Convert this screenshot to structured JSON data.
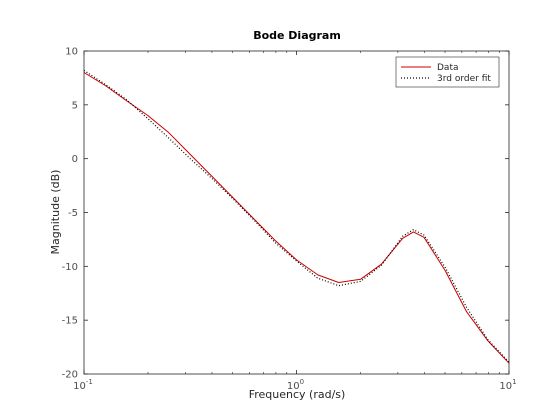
{
  "chart_data": {
    "type": "line",
    "title": "Bode Diagram",
    "xlabel": "Frequency  (rad/s)",
    "ylabel": "Magnitude (dB)",
    "xscale": "log",
    "xlim": [
      0.1,
      10
    ],
    "ylim": [
      -20,
      10
    ],
    "x_ticks": [
      {
        "value": 0.1,
        "base": "10",
        "exp": "-1"
      },
      {
        "value": 1,
        "base": "10",
        "exp": "0"
      },
      {
        "value": 10,
        "base": "10",
        "exp": "1"
      }
    ],
    "y_ticks": [
      10,
      5,
      0,
      -5,
      -10,
      -15,
      -20
    ],
    "grid": false,
    "legend_position": "top-right",
    "series": [
      {
        "name": "Data",
        "color": "#cc0000",
        "style": "solid",
        "x": [
          0.1,
          0.126,
          0.158,
          0.2,
          0.251,
          0.316,
          0.398,
          0.501,
          0.631,
          0.794,
          1.0,
          1.26,
          1.58,
          2.0,
          2.51,
          3.16,
          3.55,
          3.98,
          5.01,
          6.31,
          7.94,
          10.0
        ],
        "y": [
          8.0,
          6.8,
          5.4,
          4.0,
          2.4,
          0.4,
          -1.6,
          -3.6,
          -5.6,
          -7.6,
          -9.4,
          -10.8,
          -11.5,
          -11.2,
          -9.8,
          -7.4,
          -6.8,
          -7.3,
          -10.4,
          -14.2,
          -16.9,
          -19.0
        ]
      },
      {
        "name": "3rd order fit",
        "color": "#000000",
        "style": "dotted",
        "x": [
          0.1,
          0.126,
          0.158,
          0.2,
          0.251,
          0.316,
          0.398,
          0.501,
          0.631,
          0.794,
          1.0,
          1.26,
          1.58,
          2.0,
          2.51,
          3.16,
          3.55,
          3.98,
          5.01,
          6.31,
          7.94,
          10.0
        ],
        "y": [
          8.2,
          6.9,
          5.5,
          3.7,
          1.9,
          0.0,
          -1.8,
          -3.7,
          -5.7,
          -7.8,
          -9.5,
          -11.1,
          -11.8,
          -11.4,
          -9.9,
          -7.2,
          -6.6,
          -7.1,
          -10.1,
          -13.8,
          -16.8,
          -18.9
        ]
      }
    ]
  }
}
